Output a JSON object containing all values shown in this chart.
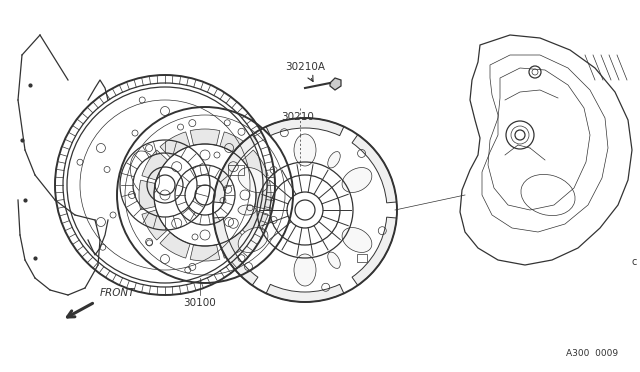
{
  "bg_color": "#ffffff",
  "line_color": "#333333",
  "lw_thick": 1.4,
  "lw_med": 0.9,
  "lw_thin": 0.5,
  "label_30210A": "30210A",
  "label_30210": "30210",
  "label_30100": "30100",
  "label_front": "FRONT",
  "label_ref": "A300  0009",
  "fig_width": 6.4,
  "fig_height": 3.72,
  "dpi": 100
}
